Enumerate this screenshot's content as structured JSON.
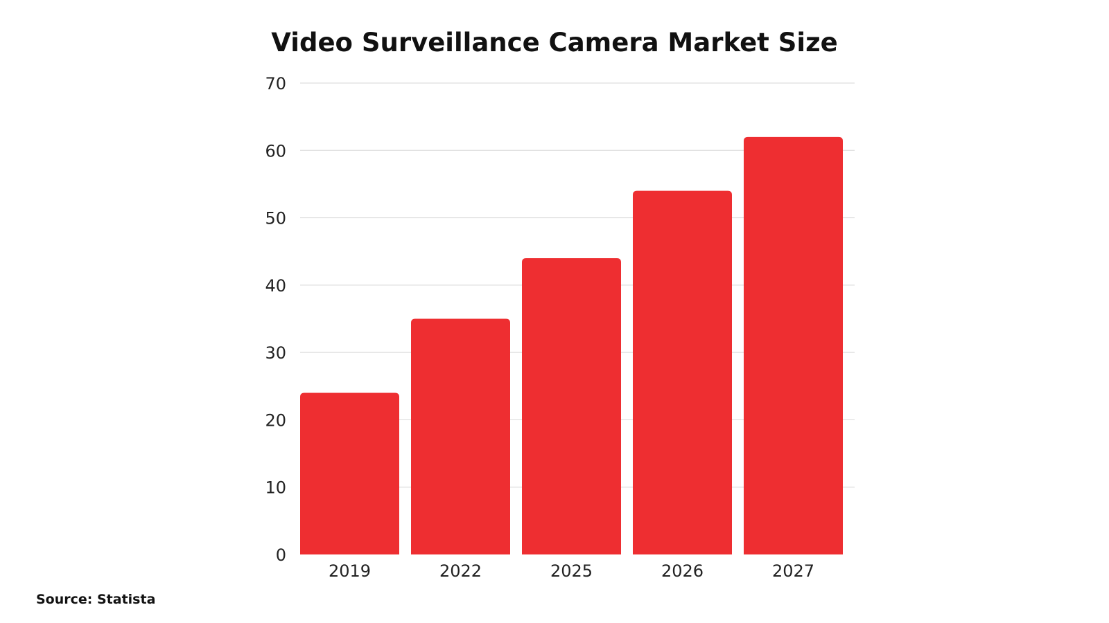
{
  "chart_data": {
    "type": "bar",
    "title": "Video Surveillance Camera Market Size",
    "categories": [
      "2019",
      "2022",
      "2025",
      "2026",
      "2027"
    ],
    "values": [
      24,
      35,
      44,
      54,
      62
    ],
    "xlabel": "",
    "ylabel": "",
    "ylim": [
      0,
      70
    ],
    "yticks": [
      0,
      10,
      20,
      30,
      40,
      50,
      60,
      70
    ],
    "bar_color": "#ee2e31",
    "grid": true,
    "legend": "none"
  },
  "source": "Source: Statista"
}
